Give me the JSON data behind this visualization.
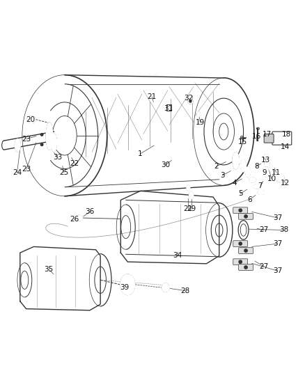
{
  "bg_color": "#ffffff",
  "fig_width": 4.38,
  "fig_height": 5.33,
  "dpi": 100,
  "line_color": "#333333",
  "label_fontsize": 7.5
}
